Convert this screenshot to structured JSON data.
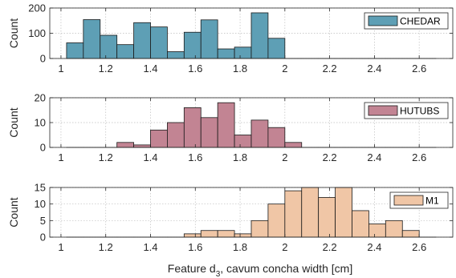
{
  "figure": {
    "xlabel_prefix": "Feature d",
    "xlabel_subscript": "3",
    "xlabel_suffix": ", cavum concha width [cm]"
  },
  "chart_data": [
    {
      "type": "bar",
      "legend": "CHEDAR",
      "legend_placement": "top-right",
      "ylabel": "Count",
      "color": "#5e9fb5",
      "bin_width": 0.075,
      "bin_starts": [
        1.025,
        1.1,
        1.175,
        1.25,
        1.325,
        1.4,
        1.475,
        1.55,
        1.625,
        1.7,
        1.775,
        1.85,
        1.925,
        2.0,
        2.075,
        2.15,
        2.225,
        2.3,
        2.375,
        2.45,
        2.525,
        2.6
      ],
      "values": [
        62,
        154,
        92,
        55,
        142,
        125,
        27,
        104,
        153,
        38,
        45,
        181,
        80,
        0,
        0,
        0,
        0,
        0,
        0,
        0,
        0,
        0
      ],
      "xlim": [
        0.95,
        2.75
      ],
      "ylim": [
        0,
        200
      ],
      "yticks": [
        0,
        100,
        200
      ],
      "xticks": [
        1,
        1.2,
        1.4,
        1.6,
        1.8,
        2,
        2.2,
        2.4,
        2.6
      ],
      "grid": true
    },
    {
      "type": "bar",
      "legend": "HUTUBS",
      "legend_placement": "top-right",
      "ylabel": "Count",
      "color": "#c28493",
      "bin_width": 0.075,
      "bin_starts": [
        1.025,
        1.1,
        1.175,
        1.25,
        1.325,
        1.4,
        1.475,
        1.55,
        1.625,
        1.7,
        1.775,
        1.85,
        1.925,
        2.0,
        2.075,
        2.15,
        2.225,
        2.3,
        2.375,
        2.45,
        2.525,
        2.6
      ],
      "values": [
        0,
        0,
        0,
        2,
        1,
        7,
        10,
        16,
        12,
        18,
        5,
        11,
        8,
        2,
        0,
        0,
        0,
        0,
        0,
        0,
        0,
        0
      ],
      "xlim": [
        0.95,
        2.75
      ],
      "ylim": [
        0,
        20
      ],
      "yticks": [
        0,
        10,
        20
      ],
      "xticks": [
        1,
        1.2,
        1.4,
        1.6,
        1.8,
        2,
        2.2,
        2.4,
        2.6
      ],
      "grid": true
    },
    {
      "type": "bar",
      "legend": "M1",
      "legend_placement": "top-right",
      "ylabel": "Count",
      "color": "#f0c6a6",
      "bin_width": 0.075,
      "bin_starts": [
        1.025,
        1.1,
        1.175,
        1.25,
        1.325,
        1.4,
        1.475,
        1.55,
        1.625,
        1.7,
        1.775,
        1.85,
        1.925,
        2.0,
        2.075,
        2.15,
        2.225,
        2.3,
        2.375,
        2.45,
        2.525,
        2.6
      ],
      "values": [
        0,
        0,
        0,
        0,
        0,
        0,
        0,
        1,
        2,
        2,
        1,
        5,
        10,
        14,
        15,
        12,
        15,
        8,
        4,
        5,
        2,
        0
      ],
      "xlim": [
        0.95,
        2.75
      ],
      "ylim": [
        0,
        15
      ],
      "yticks": [
        0,
        5,
        10,
        15
      ],
      "xticks": [
        1,
        1.2,
        1.4,
        1.6,
        1.8,
        2,
        2.2,
        2.4,
        2.6
      ],
      "grid": true
    }
  ]
}
